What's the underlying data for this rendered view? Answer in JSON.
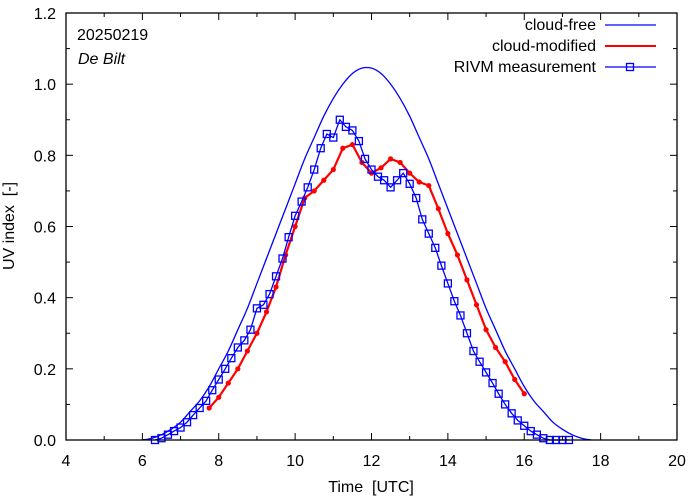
{
  "chart_data": {
    "type": "line",
    "xlabel": "Time  [UTC]",
    "ylabel": "UV index  [-]",
    "xlim": [
      4,
      20
    ],
    "ylim": [
      0,
      1.2
    ],
    "xticks": [
      4,
      6,
      8,
      10,
      12,
      14,
      16,
      18,
      20
    ],
    "xtick_labels": [
      "4",
      "6",
      "8",
      "10",
      "12",
      "14",
      "16",
      "18",
      "20"
    ],
    "yticks": [
      0,
      0.2,
      0.4,
      0.6,
      0.8,
      1.0,
      1.2
    ],
    "ytick_labels": [
      "0.0",
      "0.2",
      "0.4",
      "0.6",
      "0.8",
      "1.0",
      "1.2"
    ],
    "grid": false,
    "legend_position": "top-right",
    "annotations": {
      "date": "20250219",
      "station": "De Bilt"
    },
    "series": [
      {
        "name": "cloud-free",
        "color": "#0000ff",
        "style": "line",
        "x": [
          6.0,
          6.25,
          6.5,
          6.75,
          7.0,
          7.25,
          7.5,
          7.75,
          8.0,
          8.25,
          8.5,
          8.75,
          9.0,
          9.25,
          9.5,
          9.75,
          10.0,
          10.25,
          10.5,
          10.75,
          11.0,
          11.25,
          11.5,
          11.75,
          12.0,
          12.25,
          12.5,
          12.75,
          13.0,
          13.25,
          13.5,
          13.75,
          14.0,
          14.25,
          14.5,
          14.75,
          15.0,
          15.25,
          15.5,
          15.75,
          16.0,
          16.25,
          16.5,
          16.75,
          17.0,
          17.25,
          17.5,
          17.75
        ],
        "y": [
          0.0,
          0.005,
          0.015,
          0.03,
          0.05,
          0.08,
          0.11,
          0.15,
          0.2,
          0.25,
          0.31,
          0.37,
          0.44,
          0.51,
          0.58,
          0.65,
          0.72,
          0.79,
          0.85,
          0.91,
          0.96,
          1.0,
          1.03,
          1.045,
          1.045,
          1.03,
          1.0,
          0.96,
          0.91,
          0.85,
          0.79,
          0.72,
          0.65,
          0.58,
          0.51,
          0.44,
          0.37,
          0.31,
          0.25,
          0.2,
          0.15,
          0.11,
          0.08,
          0.05,
          0.03,
          0.015,
          0.005,
          0.0
        ]
      },
      {
        "name": "cloud-modified",
        "color": "#ff0000",
        "style": "line-dot",
        "x": [
          7.75,
          8.0,
          8.25,
          8.5,
          8.75,
          9.0,
          9.25,
          9.5,
          9.75,
          10.0,
          10.25,
          10.5,
          10.75,
          11.0,
          11.25,
          11.5,
          11.75,
          12.0,
          12.25,
          12.5,
          12.75,
          13.0,
          13.25,
          13.5,
          13.75,
          14.0,
          14.25,
          14.5,
          14.75,
          15.0,
          15.25,
          15.5,
          15.75,
          16.0
        ],
        "y": [
          0.09,
          0.12,
          0.16,
          0.2,
          0.25,
          0.3,
          0.36,
          0.43,
          0.52,
          0.6,
          0.68,
          0.7,
          0.73,
          0.76,
          0.82,
          0.83,
          0.78,
          0.75,
          0.765,
          0.79,
          0.78,
          0.75,
          0.725,
          0.715,
          0.65,
          0.58,
          0.52,
          0.45,
          0.38,
          0.31,
          0.26,
          0.22,
          0.17,
          0.13
        ]
      },
      {
        "name": "RIVM measurement",
        "color": "#0000ff",
        "style": "line-square",
        "x": [
          6.33,
          6.5,
          6.67,
          6.83,
          7.0,
          7.17,
          7.33,
          7.5,
          7.67,
          7.83,
          8.0,
          8.17,
          8.33,
          8.5,
          8.67,
          8.83,
          9.0,
          9.17,
          9.33,
          9.5,
          9.67,
          9.83,
          10.0,
          10.17,
          10.33,
          10.5,
          10.67,
          10.83,
          11.0,
          11.17,
          11.33,
          11.5,
          11.67,
          11.83,
          12.0,
          12.17,
          12.33,
          12.5,
          12.67,
          12.83,
          13.0,
          13.17,
          13.33,
          13.5,
          13.67,
          13.83,
          14.0,
          14.17,
          14.33,
          14.5,
          14.67,
          14.83,
          15.0,
          15.17,
          15.33,
          15.5,
          15.67,
          15.83,
          16.0,
          16.17,
          16.33,
          16.5,
          16.67,
          16.83,
          17.0,
          17.17
        ],
        "y": [
          0.0,
          0.005,
          0.015,
          0.025,
          0.035,
          0.05,
          0.07,
          0.09,
          0.11,
          0.14,
          0.17,
          0.2,
          0.23,
          0.26,
          0.28,
          0.31,
          0.37,
          0.38,
          0.41,
          0.46,
          0.51,
          0.57,
          0.63,
          0.67,
          0.71,
          0.76,
          0.82,
          0.86,
          0.85,
          0.9,
          0.88,
          0.87,
          0.84,
          0.79,
          0.76,
          0.74,
          0.73,
          0.71,
          0.73,
          0.75,
          0.72,
          0.68,
          0.62,
          0.58,
          0.54,
          0.49,
          0.44,
          0.39,
          0.35,
          0.3,
          0.25,
          0.22,
          0.19,
          0.16,
          0.13,
          0.1,
          0.075,
          0.055,
          0.04,
          0.025,
          0.015,
          0.005,
          0.0,
          0.0,
          0.0,
          0.0
        ]
      }
    ]
  }
}
